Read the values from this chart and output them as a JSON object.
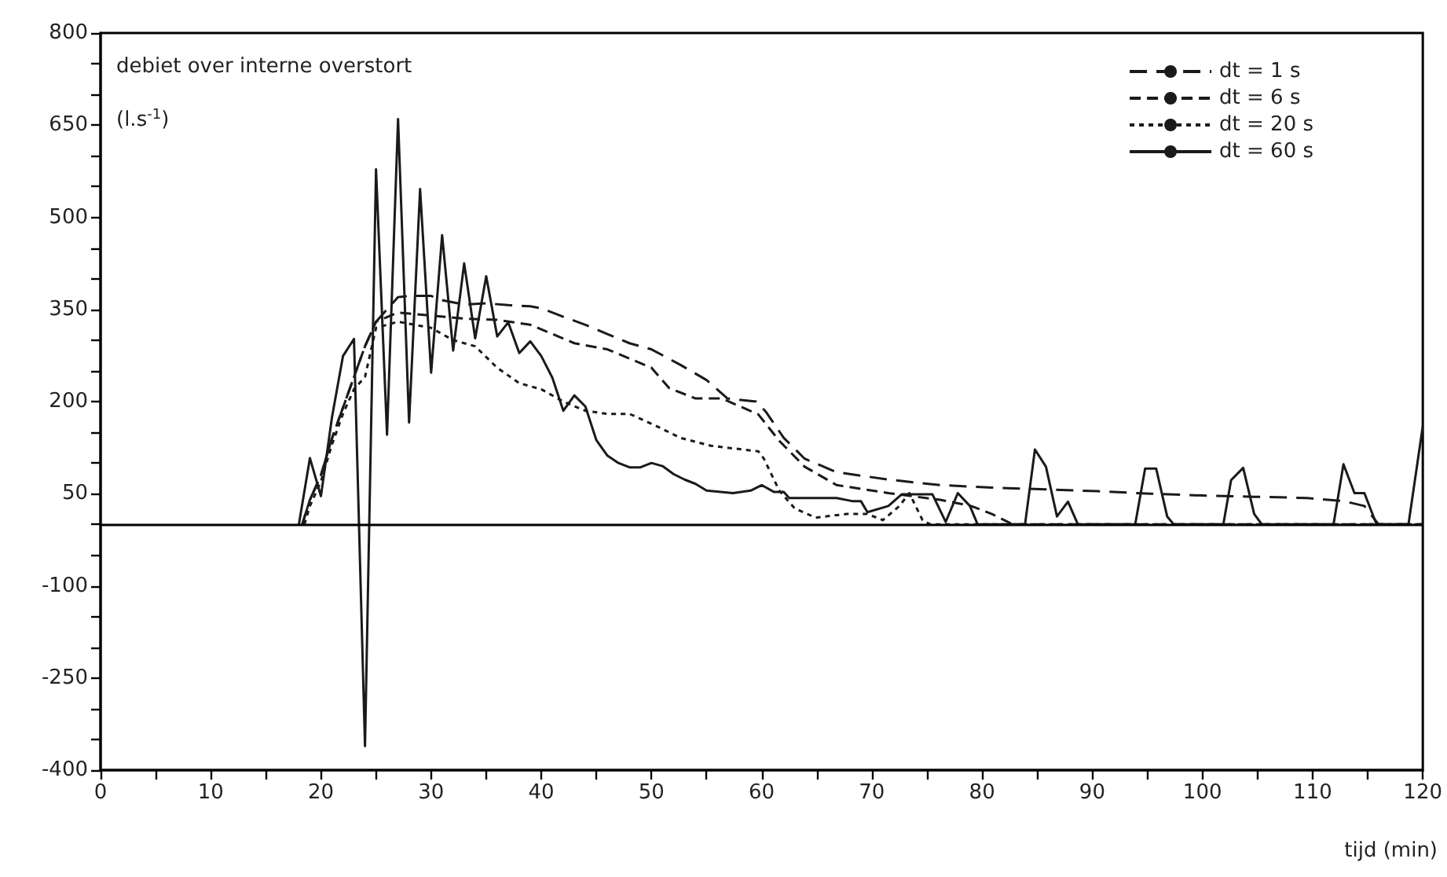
{
  "chart_data": {
    "type": "line",
    "xlabel": "tijd (min)",
    "annotations": [
      "debiet over interne overstort",
      "(l.s$^{-1}$)"
    ],
    "xlim": [
      0,
      120
    ],
    "xticks": [
      0,
      {
        "value": 5,
        "label": null
      },
      10,
      {
        "value": 15,
        "label": null
      },
      20,
      {
        "value": 25,
        "label": null
      },
      30,
      {
        "value": 35,
        "label": null
      },
      40,
      {
        "value": 45,
        "label": null
      },
      50,
      {
        "value": 55,
        "label": null
      },
      60,
      {
        "value": 65,
        "label": null
      },
      70,
      {
        "value": 75,
        "label": null
      },
      80,
      {
        "value": 85,
        "label": null
      },
      90,
      {
        "value": 95,
        "label": null
      },
      100,
      {
        "value": 105,
        "label": null
      },
      110,
      {
        "value": 115,
        "label": null
      },
      120
    ],
    "ylim": [
      -400,
      800
    ],
    "yticks": [
      -400,
      {
        "value": -350,
        "label": null
      },
      {
        "value": -300,
        "label": null
      },
      -250,
      {
        "value": -200,
        "label": null
      },
      {
        "value": -150,
        "label": null
      },
      -100,
      {
        "value": -50,
        "label": null
      },
      {
        "value": 0,
        "label": null
      },
      50,
      {
        "value": 100,
        "label": null
      },
      {
        "value": 150,
        "label": null
      },
      200,
      {
        "value": 250,
        "label": null
      },
      {
        "value": 300,
        "label": null
      },
      350,
      {
        "value": 400,
        "label": null
      },
      {
        "value": 450,
        "label": null
      },
      500,
      {
        "value": 550,
        "label": null
      },
      {
        "value": 600,
        "label": null
      },
      650,
      {
        "value": 700,
        "label": null
      },
      {
        "value": 750,
        "label": null
      },
      800
    ],
    "grid": false,
    "legend": "top right",
    "marker": "none",
    "ref_lines": [
      {
        "axis": "y",
        "value": 0,
        "color": "#000000"
      }
    ],
    "series": [
      {
        "name": "dt = 1 s",
        "color": "#1a1a1a",
        "line_style": "dashed",
        "x": [
          18.3,
          19,
          20,
          21,
          22,
          23,
          24,
          25,
          27,
          28,
          30,
          31,
          33,
          35,
          37,
          39,
          40,
          42,
          44,
          46,
          48,
          50,
          52.6,
          55,
          56.9,
          59.5,
          60.4,
          62,
          63.9,
          66.8,
          71.5,
          76.2,
          80.9,
          85.8,
          90.5,
          95.3,
          100,
          104.7,
          109.5,
          112.8,
          114.7,
          115.6,
          116,
          120
        ],
        "values": [
          0,
          40,
          80,
          140,
          190,
          240,
          290,
          330,
          370,
          372,
          372,
          365,
          358,
          360,
          357,
          355,
          352,
          338,
          325,
          310,
          295,
          285,
          260,
          235,
          205,
          200,
          183,
          141,
          107,
          85,
          73,
          64,
          60,
          57,
          54,
          50,
          47,
          45,
          43,
          38,
          30,
          9,
          0,
          0
        ]
      },
      {
        "name": "dt = 6 s",
        "color": "#1a1a1a",
        "line_style": "dashed",
        "x": [
          18.3,
          19,
          20,
          21,
          22,
          23,
          24,
          25,
          27,
          30,
          33,
          36,
          39,
          41,
          43,
          46,
          48,
          50,
          51.6,
          54,
          56.4,
          59.7,
          61.6,
          63.9,
          66.8,
          71.5,
          76.2,
          79,
          80.9,
          82.8,
          120
        ],
        "values": [
          0,
          40,
          80,
          140,
          190,
          240,
          290,
          330,
          345,
          340,
          335,
          333,
          325,
          310,
          295,
          285,
          270,
          255,
          222,
          205,
          205,
          179,
          136,
          94,
          64,
          51,
          40,
          30,
          17,
          0,
          0
        ]
      },
      {
        "name": "dt = 20 s",
        "color": "#1a1a1a",
        "line_style": "dotted",
        "x": [
          18.5,
          19,
          20,
          21,
          22,
          23,
          24,
          25,
          27,
          30,
          32,
          34,
          36,
          38,
          40,
          42,
          44,
          46,
          48,
          50.7,
          52.6,
          55.4,
          59.7,
          60.2,
          61.6,
          63,
          64.9,
          67.7,
          69.6,
          71,
          72.5,
          73.4,
          74.6,
          75.3,
          120
        ],
        "values": [
          0,
          30,
          70,
          130,
          180,
          220,
          240,
          320,
          330,
          320,
          300,
          290,
          255,
          230,
          220,
          200,
          185,
          180,
          180,
          158,
          141,
          128,
          119,
          107,
          55,
          26,
          11,
          17,
          17,
          7,
          30,
          51,
          7,
          0,
          0
        ]
      },
      {
        "name": "dt = 60 s",
        "color": "#1a1a1a",
        "line_style": "solid",
        "x": [
          18,
          19,
          20,
          21,
          22,
          23,
          24,
          25,
          26,
          27,
          28,
          29,
          30,
          31,
          32,
          33,
          34,
          35,
          36,
          37,
          38,
          39,
          40,
          41,
          42,
          43,
          44,
          45,
          46,
          47,
          48,
          49,
          50,
          51,
          52,
          53,
          54,
          55,
          57.4,
          59,
          60,
          61.1,
          62,
          62.5,
          66.8,
          68.2,
          69,
          69.6,
          71.5,
          72.7,
          75.5,
          76.7,
          77.8,
          78.9,
          79.6,
          83.9,
          84.8,
          85.8,
          86.8,
          87.8,
          88.7,
          93.9,
          94.8,
          95.8,
          96.8,
          97.4,
          101.9,
          102.6,
          103.7,
          104.7,
          105.4,
          111.9,
          112.8,
          113.8,
          114.7,
          115.8,
          118.7,
          120
        ],
        "values": [
          0,
          108,
          46,
          174,
          274,
          302,
          -361,
          578,
          146,
          660,
          166,
          546,
          247,
          471,
          283,
          425,
          303,
          404,
          306,
          329,
          279,
          298,
          274,
          239,
          185,
          210,
          192,
          137,
          112,
          100,
          93,
          93,
          100,
          95,
          82,
          73,
          66,
          55,
          51,
          55,
          64,
          53,
          53,
          43,
          43,
          38,
          38,
          20,
          30,
          49,
          49,
          4,
          51,
          30,
          0,
          0,
          122,
          94,
          13,
          37,
          0,
          0,
          91,
          91,
          13,
          0,
          0,
          72,
          92,
          17,
          0,
          0,
          98,
          51,
          51,
          0,
          0,
          160
        ]
      }
    ]
  }
}
